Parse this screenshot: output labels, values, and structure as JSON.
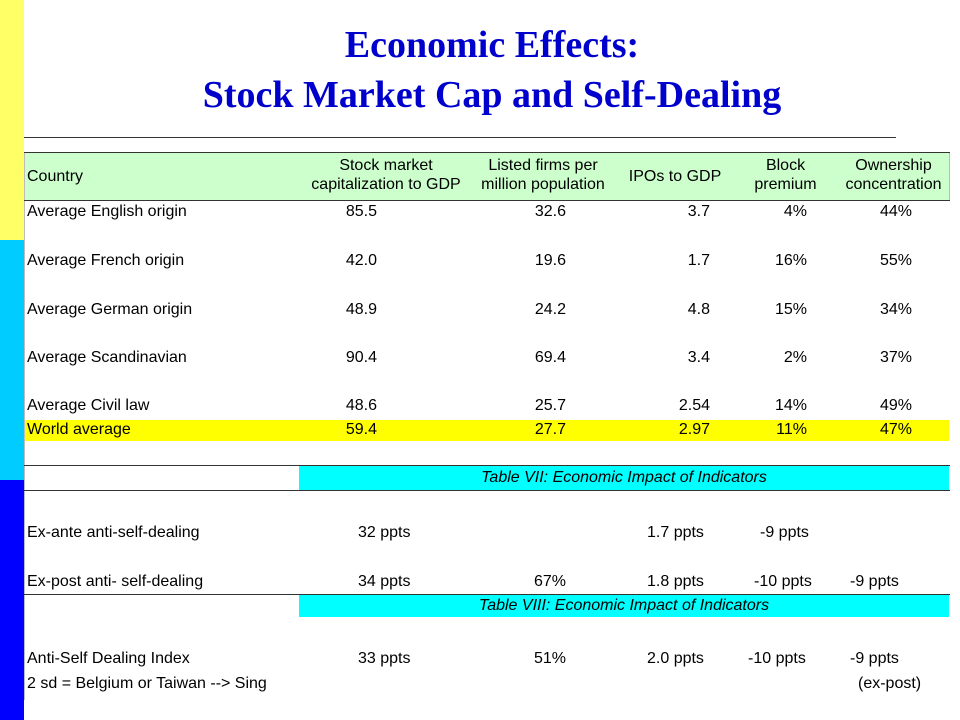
{
  "title": {
    "line1": "Economic Effects:",
    "line2": "Stock Market Cap and Self-Dealing"
  },
  "colors": {
    "side_bar": [
      "#ffff66",
      "#00ccff",
      "#0000ff"
    ],
    "title": "#0000cc",
    "header_band": "#ccffcc",
    "world_band": "#ffff00",
    "table_caption_band": "#00ffff"
  },
  "header": {
    "country": "Country",
    "mcap": [
      "Stock market",
      "capitalization to GDP"
    ],
    "listed": [
      "Listed firms per",
      "million population"
    ],
    "ipo": "IPOs to GDP",
    "block": [
      "Block",
      "premium"
    ],
    "own": [
      "Ownership",
      "concentration"
    ]
  },
  "rows": [
    {
      "label": "Average English origin",
      "mcap": "85.5",
      "listed": "32.6",
      "ipo": "3.7",
      "block": "4%",
      "own": "44%"
    },
    {
      "label": "Average French origin",
      "mcap": "42.0",
      "listed": "19.6",
      "ipo": "1.7",
      "block": "16%",
      "own": "55%"
    },
    {
      "label": "Average German origin",
      "mcap": "48.9",
      "listed": "24.2",
      "ipo": "4.8",
      "block": "15%",
      "own": "34%"
    },
    {
      "label": "Average Scandinavian",
      "mcap": "90.4",
      "listed": "69.4",
      "ipo": "3.4",
      "block": "2%",
      "own": "37%"
    },
    {
      "label": "Average Civil law",
      "mcap": "48.6",
      "listed": "25.7",
      "ipo": "2.54",
      "block": "14%",
      "own": "49%"
    },
    {
      "label": "World average",
      "mcap": "59.4",
      "listed": "27.7",
      "ipo": "2.97",
      "block": "11%",
      "own": "47%"
    }
  ],
  "table7": {
    "caption": "Table VII: Economic Impact of Indicators",
    "rows": [
      {
        "label": "Ex-ante anti-self-dealing",
        "mcap": "32 ppts",
        "listed": "",
        "ipo": "1.7 ppts",
        "block": "-9 ppts",
        "own": ""
      },
      {
        "label": "Ex-post anti- self-dealing",
        "mcap": "34 ppts",
        "listed": "67%",
        "ipo": "1.8 ppts",
        "block": "-10 ppts",
        "own": "-9 ppts"
      }
    ]
  },
  "table8": {
    "caption": "Table VIII: Economic Impact of Indicators",
    "row": {
      "label": "Anti-Self Dealing Index",
      "mcap": "33 ppts",
      "listed": "51%",
      "ipo": "2.0 ppts",
      "block": "-10 ppts",
      "own": "-9 ppts"
    },
    "note": "2 sd = Belgium or Taiwan --> Sing",
    "own_note": "(ex-post)"
  }
}
